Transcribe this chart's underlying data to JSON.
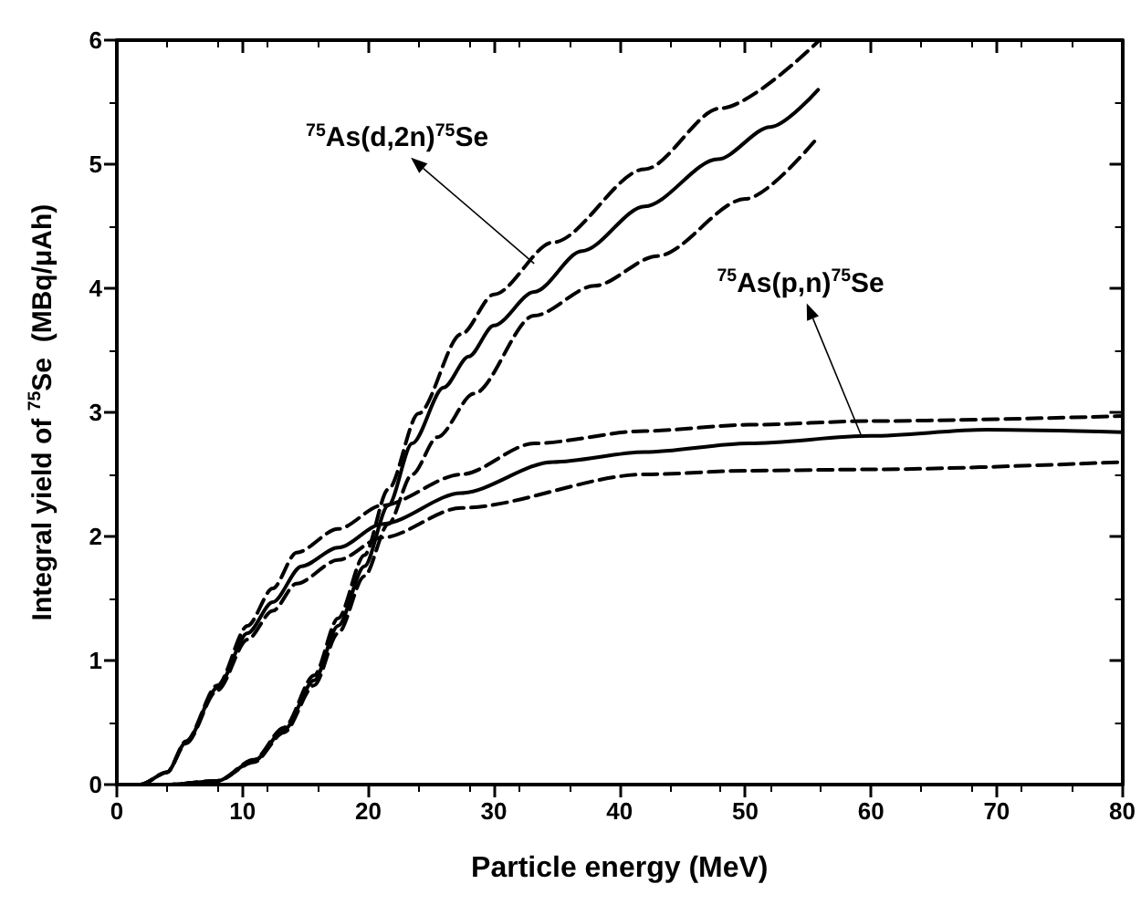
{
  "chart_data": {
    "type": "line",
    "xlabel": "Particle energy (MeV)",
    "ylabel": "Integral yield of $^{75}$Se  (MBq/μAh)",
    "xlim": [
      0,
      80
    ],
    "ylim": [
      0,
      6
    ],
    "xticks": [
      0,
      10,
      20,
      30,
      40,
      50,
      60,
      70,
      80
    ],
    "yticks": [
      0,
      1,
      2,
      3,
      4,
      5,
      6
    ],
    "grid": false,
    "marker": "none",
    "series": [
      {
        "color": "#000000",
        "line_style": "solid",
        "x": [
          0,
          1.9,
          4,
          5.5,
          8,
          10.4,
          12.4,
          14.7,
          17.6,
          21.1,
          27.4,
          34.7,
          42,
          50.3,
          60,
          69.2,
          80
        ],
        "values": [
          0,
          0,
          0.1,
          0.34,
          0.78,
          1.22,
          1.47,
          1.76,
          1.91,
          2.1,
          2.35,
          2.6,
          2.68,
          2.75,
          2.81,
          2.86,
          2.84
        ]
      },
      {
        "color": "#000000",
        "line_style": "dashed",
        "x": [
          0,
          1.9,
          4,
          5.5,
          8,
          10.4,
          12.4,
          14.3,
          17.6,
          21.1,
          27.4,
          33.2,
          42,
          50.3,
          60,
          80
        ],
        "values": [
          0,
          0,
          0.1,
          0.35,
          0.8,
          1.28,
          1.58,
          1.87,
          2.06,
          2.25,
          2.5,
          2.75,
          2.85,
          2.9,
          2.93,
          2.97
        ]
      },
      {
        "color": "#000000",
        "line_style": "dashed",
        "x": [
          0,
          1.9,
          4,
          5.5,
          8,
          10.4,
          12.4,
          14.3,
          17.6,
          21.1,
          27.4,
          42,
          50.3,
          60,
          80
        ],
        "values": [
          0,
          0,
          0.1,
          0.33,
          0.76,
          1.17,
          1.4,
          1.62,
          1.81,
          1.99,
          2.23,
          2.5,
          2.53,
          2.54,
          2.6
        ]
      },
      {
        "color": "#000000",
        "line_style": "solid",
        "x": [
          0,
          4,
          8,
          10.9,
          13.3,
          15.7,
          17.6,
          19.7,
          21.6,
          23.5,
          26,
          28,
          30,
          33.2,
          37,
          42,
          47.8,
          52,
          55.8
        ],
        "values": [
          0,
          0,
          0.03,
          0.19,
          0.44,
          0.84,
          1.28,
          1.76,
          2.25,
          2.75,
          3.2,
          3.45,
          3.7,
          3.97,
          4.3,
          4.66,
          5.04,
          5.3,
          5.6
        ]
      },
      {
        "color": "#000000",
        "line_style": "dashed",
        "x": [
          0,
          4,
          8,
          10.9,
          13.3,
          15.7,
          17.6,
          19.7,
          21.6,
          24,
          27.4,
          30,
          34.7,
          42,
          48,
          55.8
        ],
        "values": [
          0,
          0,
          0.03,
          0.2,
          0.46,
          0.88,
          1.34,
          1.85,
          2.38,
          2.99,
          3.63,
          3.95,
          4.37,
          4.96,
          5.45,
          5.99
        ]
      },
      {
        "color": "#000000",
        "line_style": "dashed",
        "x": [
          0,
          4,
          8,
          10.9,
          13.3,
          15.7,
          17.6,
          19.7,
          21.6,
          23.5,
          25.5,
          28.4,
          33.2,
          38,
          43,
          50,
          55.8
        ],
        "values": [
          0,
          0,
          0.03,
          0.18,
          0.42,
          0.8,
          1.22,
          1.68,
          2.1,
          2.5,
          2.8,
          3.15,
          3.78,
          4.02,
          4.26,
          4.72,
          5.22
        ]
      }
    ],
    "annotations": [
      {
        "text": "$^{75}$As(d,2n)$^{75}$Se",
        "x": 33.2,
        "y": 4.2
      },
      {
        "text": "$^{75}$As(p,n)$^{75}$Se",
        "x": 59.2,
        "y": 2.82
      }
    ]
  }
}
